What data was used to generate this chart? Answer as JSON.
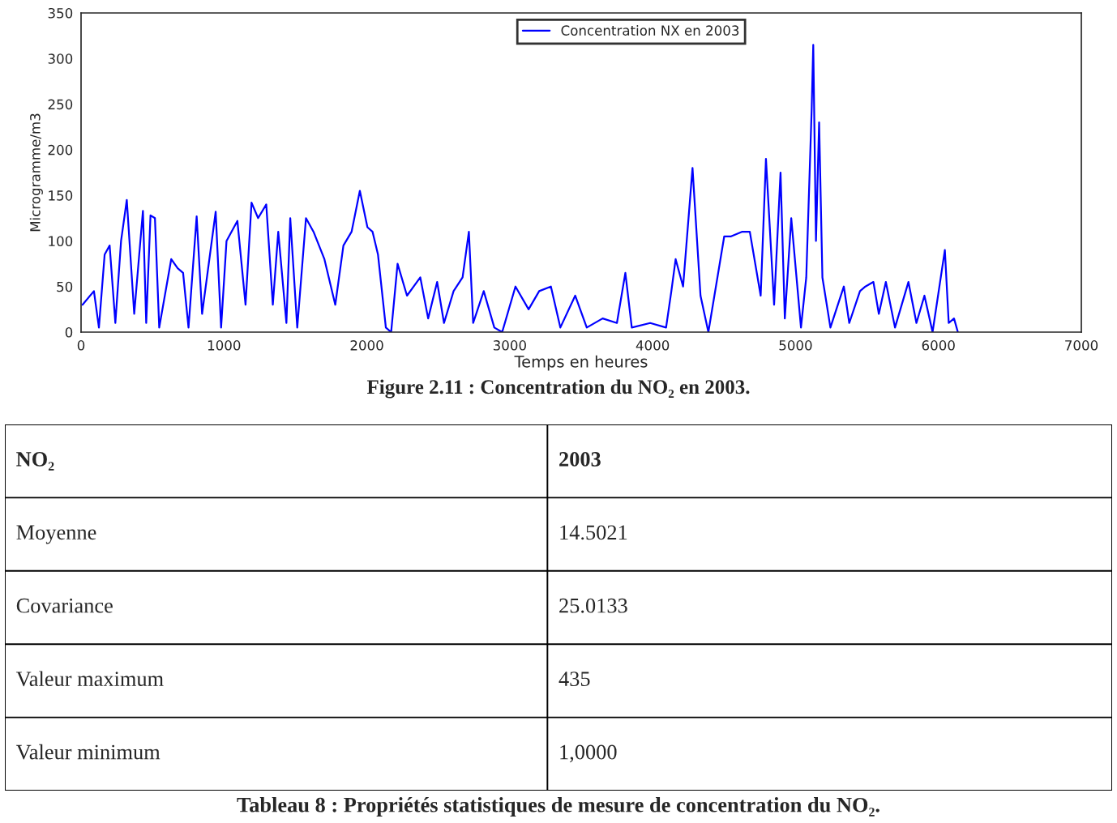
{
  "chart_data": [
    {
      "type": "line",
      "xlabel": "Temps en heures",
      "ylabel": "Microgramme/m3",
      "legend": "top",
      "grid": false,
      "marker": "none",
      "line_style": "solid",
      "xlim": [
        0,
        7000
      ],
      "xticks": [
        0,
        1000,
        2000,
        3000,
        4000,
        5000,
        6000,
        7000
      ],
      "ylim": [
        0,
        350
      ],
      "yticks": [
        0,
        50,
        100,
        150,
        200,
        250,
        300,
        350
      ],
      "annotations": [
        "Figure 2.11 : Concentration du NO₂ en 2003."
      ],
      "series": [
        {
          "name": "Concentration NX en 2003",
          "color": "#0000ff",
          "x": [
            10,
            90,
            125,
            165,
            200,
            240,
            280,
            320,
            372,
            433,
            456,
            486,
            517,
            547,
            631,
            676,
            714,
            752,
            809,
            847,
            942,
            980,
            1018,
            1094,
            1151,
            1193,
            1239,
            1296,
            1342,
            1380,
            1437,
            1464,
            1513,
            1574,
            1627,
            1703,
            1779,
            1836,
            1893,
            1951,
            2004,
            2040,
            2078,
            2133,
            2170,
            2215,
            2281,
            2374,
            2429,
            2492,
            2540,
            2607,
            2670,
            2714,
            2744,
            2818,
            2892,
            2947,
            3040,
            3132,
            3206,
            3288,
            3354,
            3458,
            3539,
            3650,
            3750,
            3809,
            3854,
            3983,
            4094,
            4131,
            4161,
            4213,
            4279,
            4335,
            4390,
            4501,
            4549,
            4624,
            4680,
            4756,
            4793,
            4850,
            4895,
            4925,
            4970,
            5038,
            5075,
            5113,
            5124,
            5143,
            5165,
            5188,
            5244,
            5338,
            5376,
            5451,
            5489,
            5545,
            5583,
            5632,
            5696,
            5790,
            5846,
            5902,
            5959,
            6045,
            6072,
            6109,
            6136
          ],
          "values": [
            30,
            45,
            5,
            85,
            95,
            10,
            100,
            145,
            20,
            133,
            10,
            128,
            125,
            5,
            80,
            70,
            65,
            5,
            127,
            20,
            132,
            5,
            100,
            122,
            30,
            142,
            125,
            140,
            30,
            110,
            10,
            125,
            5,
            125,
            110,
            80,
            30,
            95,
            110,
            155,
            115,
            110,
            85,
            5,
            0,
            75,
            40,
            60,
            15,
            55,
            10,
            45,
            60,
            110,
            10,
            45,
            5,
            0,
            50,
            25,
            45,
            50,
            5,
            40,
            5,
            15,
            10,
            65,
            5,
            10,
            5,
            45,
            80,
            50,
            180,
            40,
            0,
            105,
            105,
            110,
            110,
            40,
            190,
            30,
            175,
            15,
            125,
            5,
            60,
            245,
            315,
            100,
            230,
            60,
            5,
            50,
            10,
            45,
            50,
            55,
            20,
            55,
            5,
            55,
            10,
            40,
            0,
            90,
            10,
            15,
            0
          ]
        }
      ]
    },
    {
      "type": "other",
      "title": "Tableau 8 : Propriétés statistiques de mesure de concentration du NO₂.",
      "annotations": [
        "NO₂",
        "2003",
        "Moyenne",
        "14.5021",
        "Covariance",
        "25.0133",
        "Valeur maximum",
        "435",
        "Valeur minimum",
        "1,0000"
      ]
    }
  ]
}
